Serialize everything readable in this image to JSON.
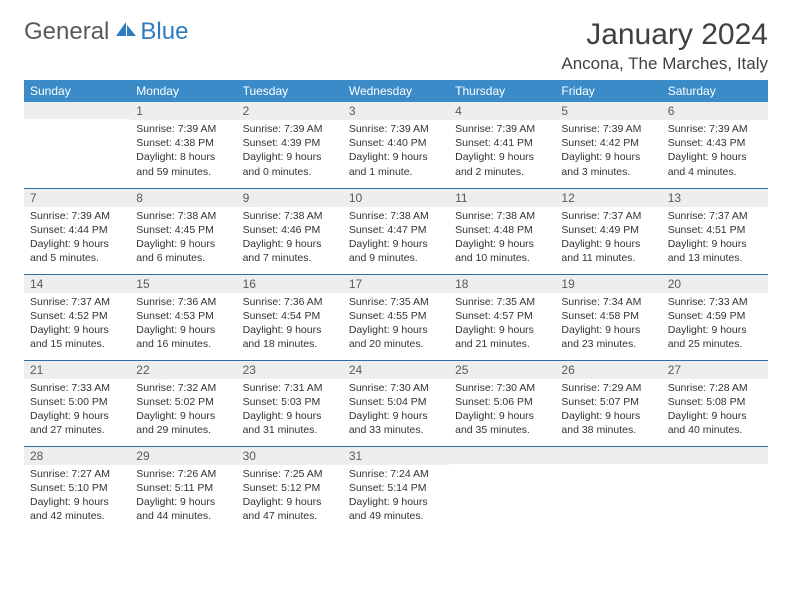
{
  "brand": {
    "part1": "General",
    "part2": "Blue"
  },
  "title": "January 2024",
  "location": "Ancona, The Marches, Italy",
  "colors": {
    "header_bg": "#3b8bc8",
    "header_text": "#ffffff",
    "daynum_bg": "#eceef0",
    "cell_border": "#2f6fa8",
    "body_text": "#333333",
    "title_text": "#404040",
    "logo_gray": "#595959",
    "logo_blue": "#2f7bbf"
  },
  "weekdays": [
    "Sunday",
    "Monday",
    "Tuesday",
    "Wednesday",
    "Thursday",
    "Friday",
    "Saturday"
  ],
  "weeks": [
    [
      {
        "n": "",
        "lines": []
      },
      {
        "n": "1",
        "lines": [
          "Sunrise: 7:39 AM",
          "Sunset: 4:38 PM",
          "Daylight: 8 hours",
          "and 59 minutes."
        ]
      },
      {
        "n": "2",
        "lines": [
          "Sunrise: 7:39 AM",
          "Sunset: 4:39 PM",
          "Daylight: 9 hours",
          "and 0 minutes."
        ]
      },
      {
        "n": "3",
        "lines": [
          "Sunrise: 7:39 AM",
          "Sunset: 4:40 PM",
          "Daylight: 9 hours",
          "and 1 minute."
        ]
      },
      {
        "n": "4",
        "lines": [
          "Sunrise: 7:39 AM",
          "Sunset: 4:41 PM",
          "Daylight: 9 hours",
          "and 2 minutes."
        ]
      },
      {
        "n": "5",
        "lines": [
          "Sunrise: 7:39 AM",
          "Sunset: 4:42 PM",
          "Daylight: 9 hours",
          "and 3 minutes."
        ]
      },
      {
        "n": "6",
        "lines": [
          "Sunrise: 7:39 AM",
          "Sunset: 4:43 PM",
          "Daylight: 9 hours",
          "and 4 minutes."
        ]
      }
    ],
    [
      {
        "n": "7",
        "lines": [
          "Sunrise: 7:39 AM",
          "Sunset: 4:44 PM",
          "Daylight: 9 hours",
          "and 5 minutes."
        ]
      },
      {
        "n": "8",
        "lines": [
          "Sunrise: 7:38 AM",
          "Sunset: 4:45 PM",
          "Daylight: 9 hours",
          "and 6 minutes."
        ]
      },
      {
        "n": "9",
        "lines": [
          "Sunrise: 7:38 AM",
          "Sunset: 4:46 PM",
          "Daylight: 9 hours",
          "and 7 minutes."
        ]
      },
      {
        "n": "10",
        "lines": [
          "Sunrise: 7:38 AM",
          "Sunset: 4:47 PM",
          "Daylight: 9 hours",
          "and 9 minutes."
        ]
      },
      {
        "n": "11",
        "lines": [
          "Sunrise: 7:38 AM",
          "Sunset: 4:48 PM",
          "Daylight: 9 hours",
          "and 10 minutes."
        ]
      },
      {
        "n": "12",
        "lines": [
          "Sunrise: 7:37 AM",
          "Sunset: 4:49 PM",
          "Daylight: 9 hours",
          "and 11 minutes."
        ]
      },
      {
        "n": "13",
        "lines": [
          "Sunrise: 7:37 AM",
          "Sunset: 4:51 PM",
          "Daylight: 9 hours",
          "and 13 minutes."
        ]
      }
    ],
    [
      {
        "n": "14",
        "lines": [
          "Sunrise: 7:37 AM",
          "Sunset: 4:52 PM",
          "Daylight: 9 hours",
          "and 15 minutes."
        ]
      },
      {
        "n": "15",
        "lines": [
          "Sunrise: 7:36 AM",
          "Sunset: 4:53 PM",
          "Daylight: 9 hours",
          "and 16 minutes."
        ]
      },
      {
        "n": "16",
        "lines": [
          "Sunrise: 7:36 AM",
          "Sunset: 4:54 PM",
          "Daylight: 9 hours",
          "and 18 minutes."
        ]
      },
      {
        "n": "17",
        "lines": [
          "Sunrise: 7:35 AM",
          "Sunset: 4:55 PM",
          "Daylight: 9 hours",
          "and 20 minutes."
        ]
      },
      {
        "n": "18",
        "lines": [
          "Sunrise: 7:35 AM",
          "Sunset: 4:57 PM",
          "Daylight: 9 hours",
          "and 21 minutes."
        ]
      },
      {
        "n": "19",
        "lines": [
          "Sunrise: 7:34 AM",
          "Sunset: 4:58 PM",
          "Daylight: 9 hours",
          "and 23 minutes."
        ]
      },
      {
        "n": "20",
        "lines": [
          "Sunrise: 7:33 AM",
          "Sunset: 4:59 PM",
          "Daylight: 9 hours",
          "and 25 minutes."
        ]
      }
    ],
    [
      {
        "n": "21",
        "lines": [
          "Sunrise: 7:33 AM",
          "Sunset: 5:00 PM",
          "Daylight: 9 hours",
          "and 27 minutes."
        ]
      },
      {
        "n": "22",
        "lines": [
          "Sunrise: 7:32 AM",
          "Sunset: 5:02 PM",
          "Daylight: 9 hours",
          "and 29 minutes."
        ]
      },
      {
        "n": "23",
        "lines": [
          "Sunrise: 7:31 AM",
          "Sunset: 5:03 PM",
          "Daylight: 9 hours",
          "and 31 minutes."
        ]
      },
      {
        "n": "24",
        "lines": [
          "Sunrise: 7:30 AM",
          "Sunset: 5:04 PM",
          "Daylight: 9 hours",
          "and 33 minutes."
        ]
      },
      {
        "n": "25",
        "lines": [
          "Sunrise: 7:30 AM",
          "Sunset: 5:06 PM",
          "Daylight: 9 hours",
          "and 35 minutes."
        ]
      },
      {
        "n": "26",
        "lines": [
          "Sunrise: 7:29 AM",
          "Sunset: 5:07 PM",
          "Daylight: 9 hours",
          "and 38 minutes."
        ]
      },
      {
        "n": "27",
        "lines": [
          "Sunrise: 7:28 AM",
          "Sunset: 5:08 PM",
          "Daylight: 9 hours",
          "and 40 minutes."
        ]
      }
    ],
    [
      {
        "n": "28",
        "lines": [
          "Sunrise: 7:27 AM",
          "Sunset: 5:10 PM",
          "Daylight: 9 hours",
          "and 42 minutes."
        ]
      },
      {
        "n": "29",
        "lines": [
          "Sunrise: 7:26 AM",
          "Sunset: 5:11 PM",
          "Daylight: 9 hours",
          "and 44 minutes."
        ]
      },
      {
        "n": "30",
        "lines": [
          "Sunrise: 7:25 AM",
          "Sunset: 5:12 PM",
          "Daylight: 9 hours",
          "and 47 minutes."
        ]
      },
      {
        "n": "31",
        "lines": [
          "Sunrise: 7:24 AM",
          "Sunset: 5:14 PM",
          "Daylight: 9 hours",
          "and 49 minutes."
        ]
      },
      {
        "n": "",
        "lines": []
      },
      {
        "n": "",
        "lines": []
      },
      {
        "n": "",
        "lines": []
      }
    ]
  ]
}
